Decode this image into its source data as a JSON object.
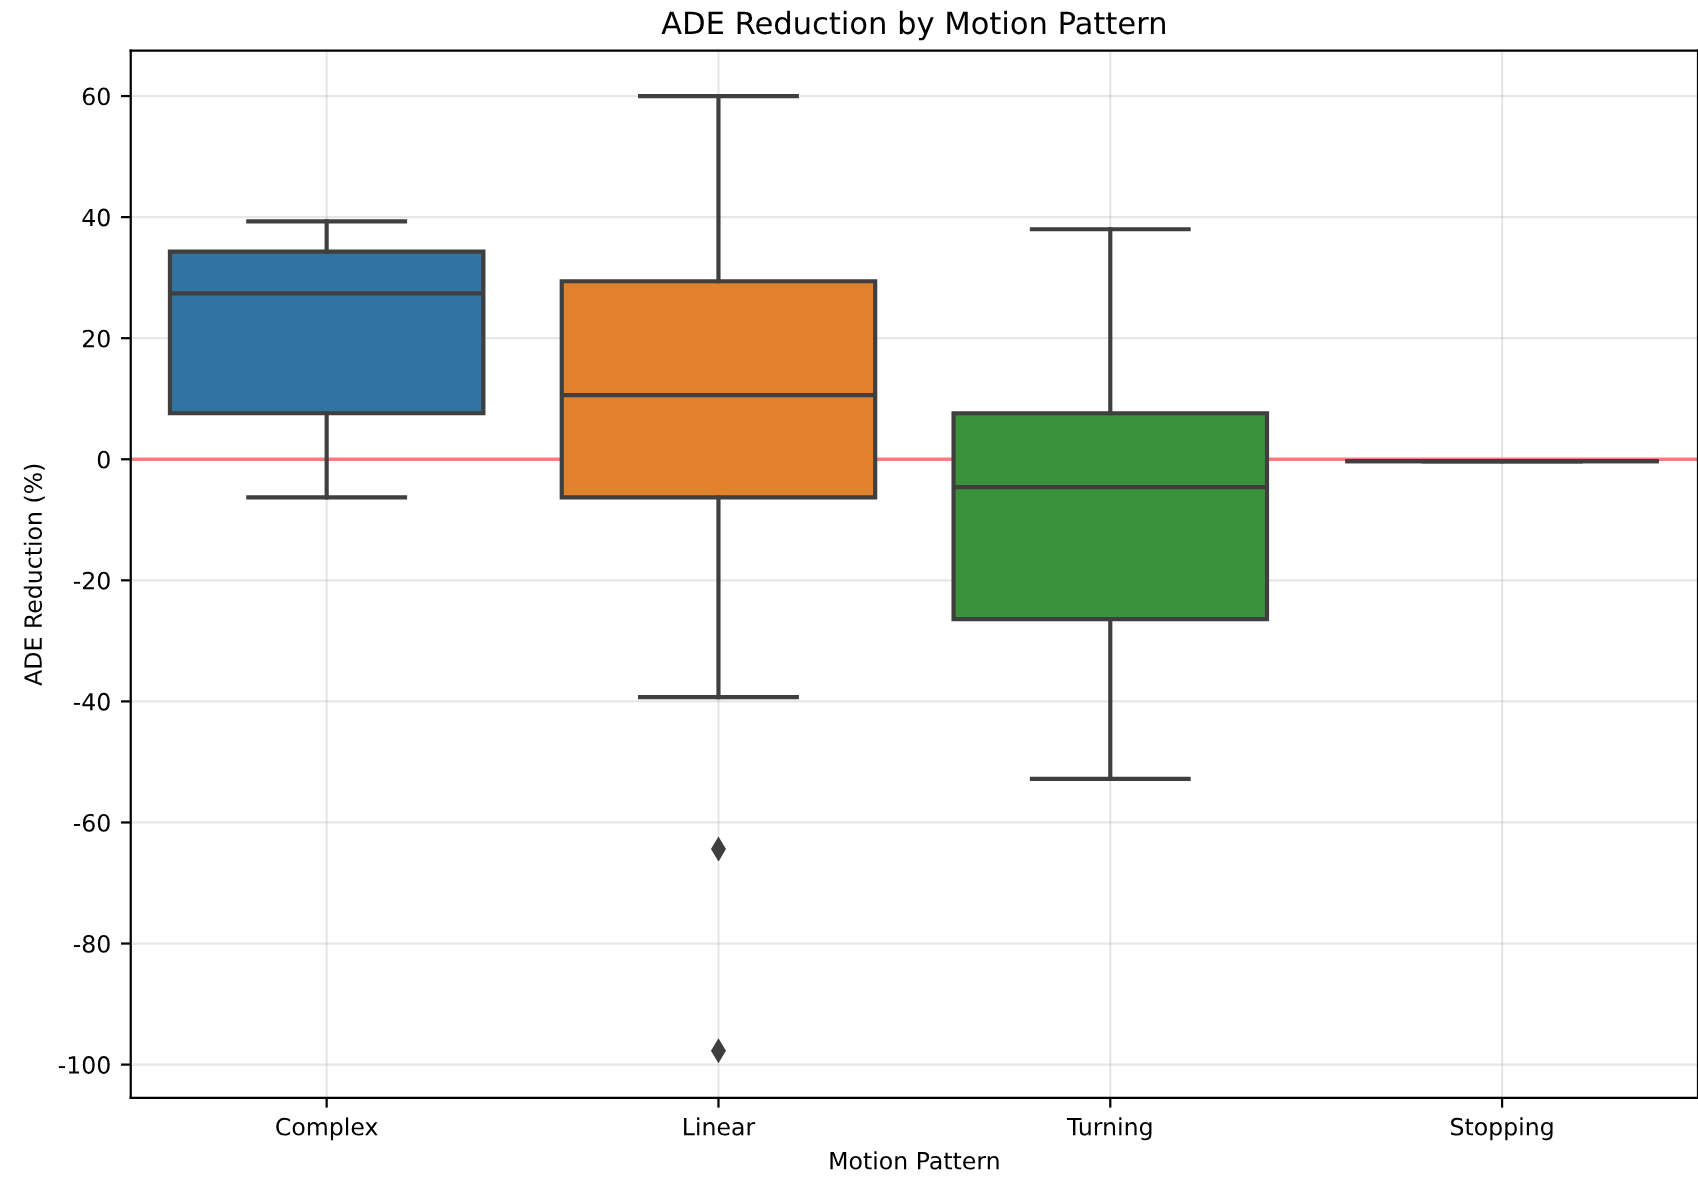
{
  "chart_data": {
    "type": "box",
    "title": "ADE Reduction by Motion Pattern",
    "xlabel": "Motion Pattern",
    "ylabel": "ADE Reduction (%)",
    "categories": [
      "Complex",
      "Linear",
      "Turning",
      "Stopping"
    ],
    "boxes": [
      {
        "low": -6.3,
        "q1": 7.6,
        "median": 27.4,
        "q3": 34.3,
        "high": 39.3
      },
      {
        "low": -39.3,
        "q1": -6.3,
        "median": 10.6,
        "q3": 29.4,
        "high": 60,
        "outliers": [
          -64.4,
          -97.7
        ]
      },
      {
        "low": -52.8,
        "q1": -26.4,
        "median": -4.6,
        "q3": 7.6,
        "high": 38
      },
      {
        "low": -0.3,
        "q1": -0.3,
        "median": -0.3,
        "q3": -0.3,
        "high": -0.3
      }
    ],
    "colors": [
      "#3274a1",
      "#e1812c",
      "#3a923a",
      "#3f3f3f"
    ],
    "ylim": [
      -105.5,
      67.5
    ],
    "yticks": [
      -100,
      -80,
      -60,
      -40,
      -20,
      0,
      20,
      40,
      60
    ],
    "ref_lines": [
      {
        "axis": "y",
        "value": 0,
        "color": "#f08080"
      }
    ],
    "grid": true
  }
}
